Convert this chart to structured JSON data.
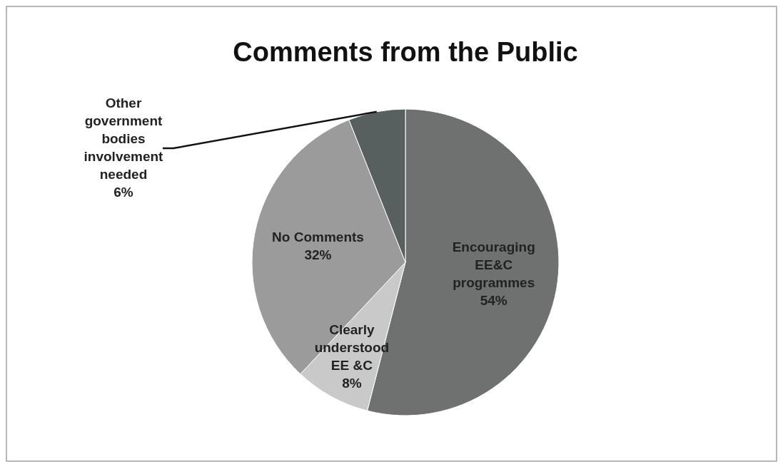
{
  "chart_data": {
    "type": "pie",
    "title": "Comments from the Public",
    "categories": [
      "Encouraging EE&C programmes",
      "Clearly understood EE &C",
      "No Comments",
      "Other government bodies involvement needed"
    ],
    "values": [
      54,
      8,
      32,
      6
    ],
    "value_labels": [
      "54%",
      "8%",
      "32%",
      "6%"
    ],
    "colors": [
      "#6e7170",
      "#c9c9c9",
      "#9b9b9b",
      "#58605f"
    ]
  }
}
